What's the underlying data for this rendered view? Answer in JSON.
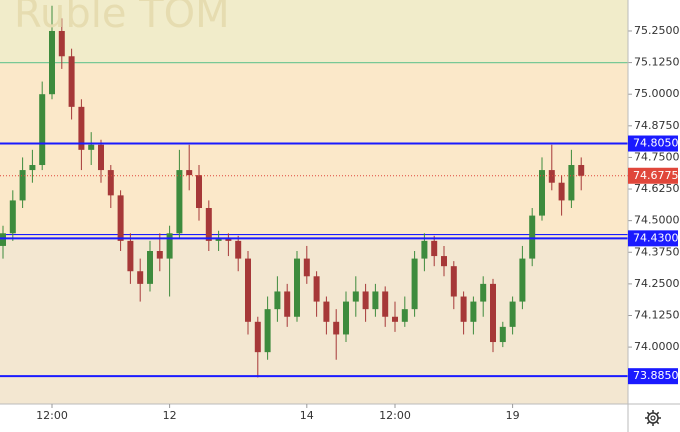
{
  "chart_data": {
    "type": "candlestick",
    "title": "Ruble TOM",
    "categories": [
      null,
      null,
      null,
      null,
      null,
      "12:00",
      null,
      null,
      null,
      null,
      null,
      null,
      null,
      null,
      null,
      null,
      null,
      "12",
      null,
      null,
      null,
      null,
      null,
      null,
      null,
      null,
      null,
      null,
      null,
      null,
      null,
      "14",
      null,
      null,
      null,
      null,
      null,
      null,
      null,
      null,
      "12:00",
      null,
      null,
      null,
      null,
      null,
      null,
      null,
      null,
      null,
      null,
      null,
      "19",
      null,
      null,
      null,
      null,
      null,
      null,
      null
    ],
    "open": [
      74.4,
      74.45,
      74.58,
      74.7,
      74.72,
      75.0,
      75.25,
      75.15,
      74.95,
      74.78,
      74.8,
      74.7,
      74.6,
      74.42,
      74.3,
      74.25,
      74.38,
      74.35,
      74.45,
      74.7,
      74.68,
      74.55,
      74.42,
      74.43,
      74.42,
      74.35,
      74.1,
      73.98,
      74.15,
      74.22,
      74.12,
      74.35,
      74.28,
      74.18,
      74.1,
      74.05,
      74.18,
      74.22,
      74.15,
      74.22,
      74.12,
      74.1,
      74.15,
      74.35,
      74.42,
      74.36,
      74.32,
      74.2,
      74.1,
      74.18,
      74.25,
      74.02,
      74.08,
      74.18,
      74.35,
      74.52,
      74.7,
      74.65,
      74.58,
      74.72
    ],
    "high": [
      74.48,
      74.62,
      74.75,
      74.78,
      75.05,
      75.35,
      75.3,
      75.18,
      74.98,
      74.85,
      74.82,
      74.72,
      74.62,
      74.45,
      74.35,
      74.42,
      74.45,
      74.48,
      74.78,
      74.8,
      74.72,
      74.58,
      74.46,
      74.45,
      74.44,
      74.38,
      74.12,
      74.2,
      74.28,
      74.25,
      74.38,
      74.4,
      74.3,
      74.2,
      74.15,
      74.22,
      74.28,
      74.25,
      74.25,
      74.24,
      74.18,
      74.2,
      74.38,
      74.45,
      74.44,
      74.4,
      74.34,
      74.22,
      74.2,
      74.28,
      74.27,
      74.1,
      74.2,
      74.4,
      74.55,
      74.75,
      74.8,
      74.68,
      74.78,
      74.75
    ],
    "low": [
      74.35,
      74.42,
      74.55,
      74.65,
      74.7,
      74.98,
      75.1,
      74.9,
      74.7,
      74.72,
      74.65,
      74.55,
      74.38,
      74.25,
      74.18,
      74.22,
      74.3,
      74.2,
      74.43,
      74.62,
      74.5,
      74.38,
      74.38,
      74.36,
      74.3,
      74.05,
      73.88,
      73.95,
      74.1,
      74.08,
      74.1,
      74.25,
      74.12,
      74.05,
      73.95,
      74.02,
      74.12,
      74.1,
      74.12,
      74.08,
      74.06,
      74.08,
      74.12,
      74.3,
      74.32,
      74.28,
      74.15,
      74.05,
      74.05,
      74.12,
      73.98,
      74.0,
      74.05,
      74.15,
      74.32,
      74.5,
      74.62,
      74.52,
      74.55,
      74.62
    ],
    "close": [
      74.45,
      74.58,
      74.7,
      74.72,
      75.0,
      75.25,
      75.15,
      74.95,
      74.78,
      74.8,
      74.7,
      74.6,
      74.42,
      74.3,
      74.25,
      74.38,
      74.35,
      74.45,
      74.7,
      74.68,
      74.55,
      74.42,
      74.43,
      74.42,
      74.35,
      74.1,
      73.98,
      74.15,
      74.22,
      74.12,
      74.35,
      74.28,
      74.18,
      74.1,
      74.05,
      74.18,
      74.22,
      74.15,
      74.22,
      74.12,
      74.1,
      74.15,
      74.35,
      74.42,
      74.36,
      74.32,
      74.2,
      74.1,
      74.18,
      74.25,
      74.02,
      74.08,
      74.18,
      74.35,
      74.52,
      74.7,
      74.65,
      74.58,
      74.72,
      74.6775
    ],
    "up_color": "#3d8b3d",
    "down_color": "#a63838",
    "ylim": [
      73.775,
      75.3725
    ],
    "yticks": [
      {
        "value": 74.0,
        "label": "74.0000"
      },
      {
        "value": 74.125,
        "label": "74.1250"
      },
      {
        "value": 74.25,
        "label": "74.2500"
      },
      {
        "value": 74.375,
        "label": "74.3750"
      },
      {
        "value": 74.5,
        "label": "74.5000"
      },
      {
        "value": 74.625,
        "label": "74.6250"
      },
      {
        "value": 74.75,
        "label": "74.7500"
      },
      {
        "value": 74.875,
        "label": "74.8750"
      },
      {
        "value": 75.0,
        "label": "75.0000"
      },
      {
        "value": 75.125,
        "label": "75.1250"
      },
      {
        "value": 75.25,
        "label": "75.2500"
      }
    ],
    "bands": [
      {
        "from": 75.125,
        "to": 75.3725,
        "color": "#f1ecca"
      },
      {
        "from": 74.43,
        "to": 75.125,
        "color": "#fbe8c9"
      },
      {
        "from": 73.775,
        "to": 74.43,
        "color": "#f3e7d1"
      }
    ],
    "lines": [
      {
        "value": 75.125,
        "color": "#78c896"
      },
      {
        "value": 74.445,
        "color": "#1a1aff"
      }
    ],
    "levels": [
      {
        "value": 74.805,
        "label": "74.8050",
        "color": "#1a1aff"
      },
      {
        "value": 74.43,
        "label": "74.4300",
        "color": "#1a1aff"
      },
      {
        "value": 73.885,
        "label": "73.8850",
        "color": "#1a1aff"
      }
    ],
    "current_price": {
      "value": 74.6775,
      "label": "74.6775",
      "color": "#e0463a"
    }
  }
}
